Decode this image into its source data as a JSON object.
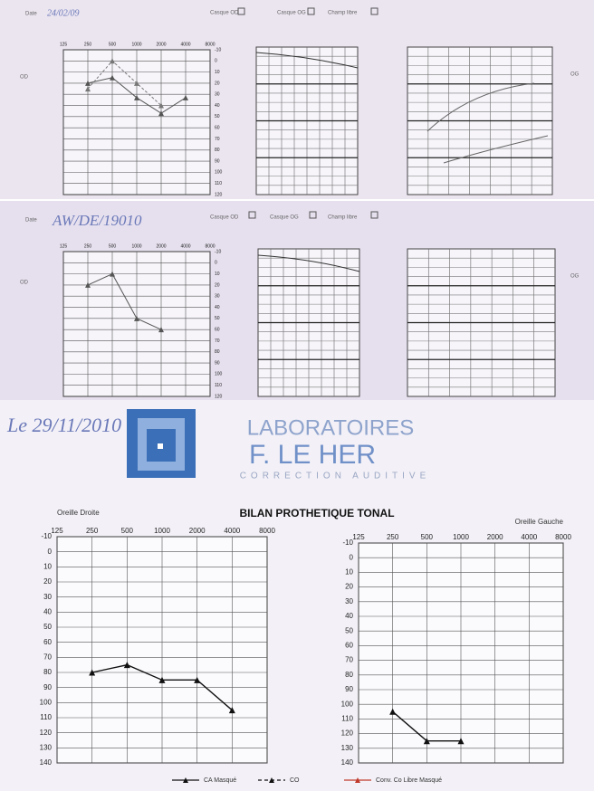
{
  "forms": [
    {
      "date_label": "Date",
      "date": "24/02/09",
      "options": [
        "Casque OD",
        "Casque OG",
        "Champ libre"
      ],
      "ear_right": "OD",
      "ear_left": "OG"
    },
    {
      "date_label": "Date",
      "date": "AW/DE/19010",
      "options": [
        "Casque OD",
        "Casque OG",
        "Champ libre"
      ],
      "ear_right": "OD",
      "ear_left": "OG"
    }
  ],
  "sheet": {
    "date": "Le 29/11/2010",
    "brand": [
      "LABORATOIRES",
      "F. LE HER",
      "CORRECTION AUDITIVE"
    ],
    "legend": [
      {
        "name": "CA Masqué",
        "color": "#111111",
        "dash": false
      },
      {
        "name": "CO",
        "color": "#111111",
        "dash": true
      },
      {
        "name": "Conv. Co Libre Masqué",
        "color": "#c0392b",
        "dash": false
      }
    ]
  },
  "chart_data": [
    {
      "type": "line",
      "categories": [
        "125",
        "250",
        "500",
        "1000",
        "2000",
        "4000",
        "8000"
      ],
      "ylim": [
        -10,
        120
      ],
      "yticks": [
        -10,
        0,
        10,
        20,
        30,
        40,
        50,
        60,
        70,
        80,
        90,
        100,
        110,
        120
      ],
      "inverted": true,
      "series": [
        {
          "color": "#555555",
          "values": [
            null,
            20,
            15,
            33,
            47,
            33,
            null
          ]
        },
        {
          "color": "#777777",
          "values": [
            null,
            25,
            0,
            20,
            40,
            null,
            null
          ]
        }
      ]
    },
    {
      "type": "line",
      "categories": [
        "125",
        "250",
        "500",
        "1000",
        "2000",
        "4000",
        "8000"
      ],
      "ylim": [
        -10,
        120
      ],
      "yticks": [
        -10,
        0,
        10,
        20,
        30,
        40,
        50,
        60,
        70,
        80,
        90,
        100,
        110,
        120
      ],
      "inverted": true,
      "series": [
        {
          "color": "#555555",
          "values": [
            null,
            20,
            10,
            50,
            60,
            null,
            null
          ]
        }
      ]
    },
    {
      "type": "line",
      "title": "BILAN PROTHETIQUE TONAL",
      "label": "Oreille Droite",
      "categories": [
        "125",
        "250",
        "500",
        "1000",
        "2000",
        "4000",
        "8000"
      ],
      "ylim": [
        -10,
        140
      ],
      "yticks": [
        -10,
        0,
        10,
        20,
        30,
        40,
        50,
        60,
        70,
        80,
        90,
        100,
        110,
        120,
        130,
        140
      ],
      "inverted": true,
      "series": [
        {
          "name": "CA Masqué",
          "color": "#111111",
          "values": [
            null,
            80,
            75,
            85,
            85,
            105,
            null
          ]
        }
      ]
    },
    {
      "type": "line",
      "label": "Oreille Gauche",
      "categories": [
        "125",
        "250",
        "500",
        "1000",
        "2000",
        "4000",
        "8000"
      ],
      "ylim": [
        -10,
        140
      ],
      "yticks": [
        -10,
        0,
        10,
        20,
        30,
        40,
        50,
        60,
        70,
        80,
        90,
        100,
        110,
        120,
        130,
        140
      ],
      "inverted": true,
      "series": [
        {
          "name": "CA Masqué",
          "color": "#111111",
          "values": [
            null,
            105,
            125,
            125,
            null,
            null,
            null
          ]
        }
      ]
    }
  ]
}
